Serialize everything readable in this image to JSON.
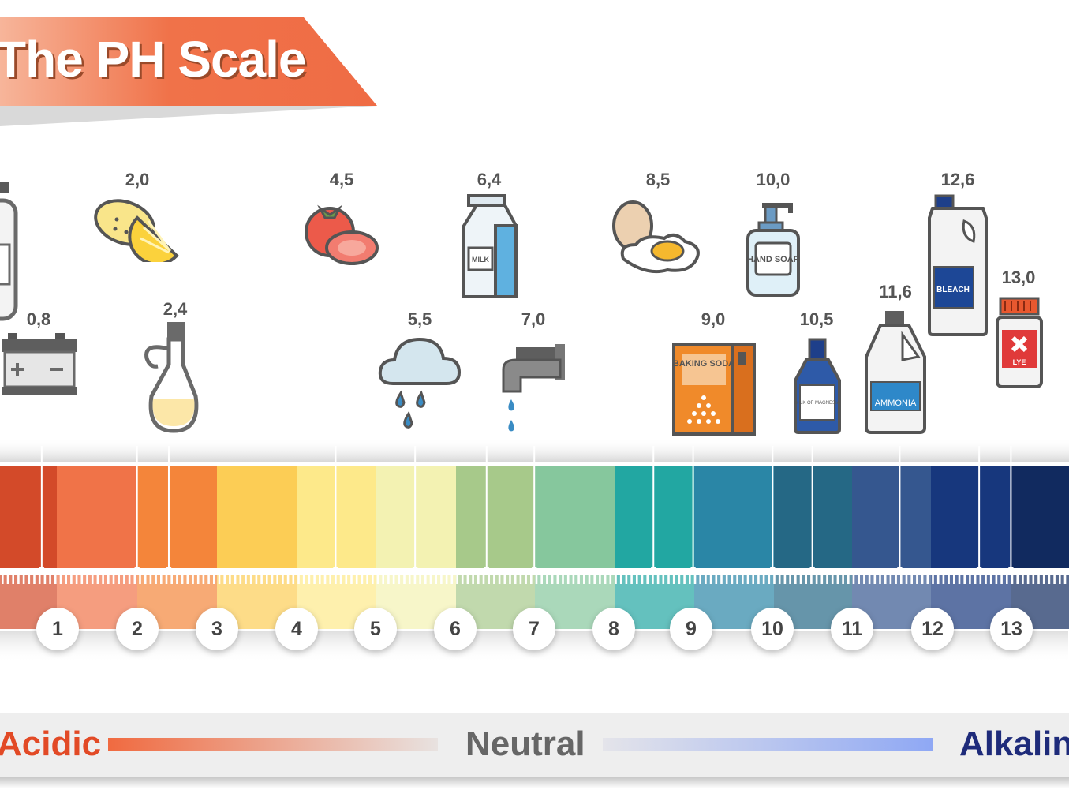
{
  "title": "The PH Scale",
  "colors": {
    "banner": "#f06c48",
    "acidic": "#e24a26",
    "neutral": "#666666",
    "alkaline": "#1e2b7a"
  },
  "scale_colors": [
    "#d34a29",
    "#f07348",
    "#f4853a",
    "#fccd55",
    "#fde98a",
    "#f3f2b2",
    "#a7c98a",
    "#86c79d",
    "#22a7a2",
    "#2a86a6",
    "#256885",
    "#35578f",
    "#17377d",
    "#112a5f"
  ],
  "scale_numbers": [
    "1",
    "2",
    "3",
    "4",
    "5",
    "6",
    "7",
    "8",
    "9",
    "10",
    "11",
    "12",
    "13"
  ],
  "items": [
    {
      "value": "0,8",
      "icon": "battery-icon"
    },
    {
      "value": "2,0",
      "icon": "lemon-icon"
    },
    {
      "value": "2,4",
      "icon": "vinegar-bottle-icon"
    },
    {
      "value": "4,5",
      "icon": "tomato-icon"
    },
    {
      "value": "5,5",
      "icon": "rain-cloud-icon"
    },
    {
      "value": "6,4",
      "icon": "milk-carton-icon",
      "label": "MILK"
    },
    {
      "value": "7,0",
      "icon": "water-tap-icon"
    },
    {
      "value": "8,5",
      "icon": "egg-icon"
    },
    {
      "value": "9,0",
      "icon": "baking-soda-box-icon",
      "label": "BAKING SODA"
    },
    {
      "value": "10,0",
      "icon": "hand-soap-icon",
      "label": "HAND SOAP"
    },
    {
      "value": "10,5",
      "icon": "milk-of-magnesia-icon",
      "label": "MILK OF MAGNESIA"
    },
    {
      "value": "11,6",
      "icon": "ammonia-jug-icon",
      "label": "AMMONIA"
    },
    {
      "value": "12,6",
      "icon": "bleach-jug-icon",
      "label": "BLEACH"
    },
    {
      "value": "13,0",
      "icon": "lye-jar-icon",
      "label": "LYE"
    }
  ],
  "footer": {
    "acidic": "Acidic",
    "neutral": "Neutral",
    "alkaline": "Alkaline"
  }
}
